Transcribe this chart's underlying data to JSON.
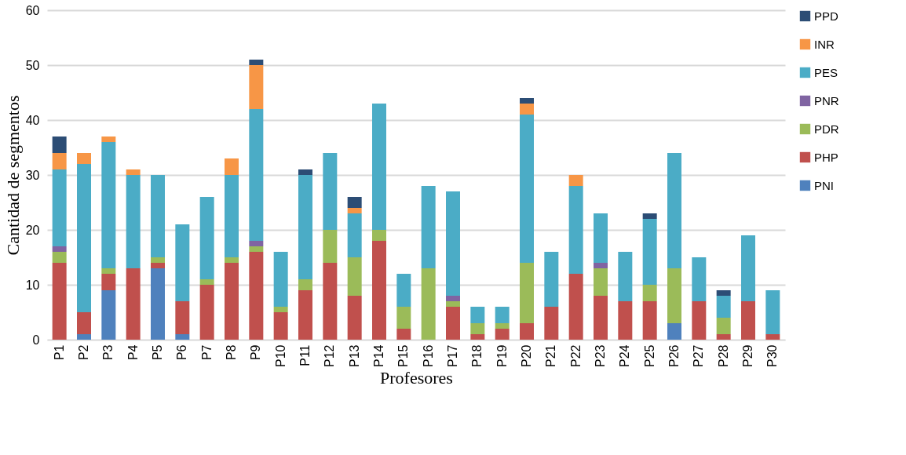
{
  "chart_data": {
    "type": "bar",
    "stacked": true,
    "xlabel": "Profesores",
    "ylabel": "Cantidad de segmentos",
    "categories": [
      "P1",
      "P2",
      "P3",
      "P4",
      "P5",
      "P6",
      "P7",
      "P8",
      "P9",
      "P10",
      "P11",
      "P12",
      "P13",
      "P14",
      "P15",
      "P16",
      "P17",
      "P18",
      "P19",
      "P20",
      "P21",
      "P22",
      "P23",
      "P24",
      "P25",
      "P26",
      "P27",
      "P28",
      "P29",
      "P30"
    ],
    "ylim": [
      0,
      60
    ],
    "yticks": [
      0,
      10,
      20,
      30,
      40,
      50,
      60
    ],
    "grid": "y",
    "legend": "right",
    "series": [
      {
        "name": "PNI",
        "color": "#4f81bd",
        "values": [
          0,
          1,
          9,
          0,
          13,
          1,
          0,
          0,
          0,
          0,
          0,
          0,
          0,
          0,
          0,
          0,
          0,
          0,
          0,
          0,
          0,
          0,
          0,
          0,
          0,
          3,
          0,
          0,
          0,
          0
        ]
      },
      {
        "name": "PHP",
        "color": "#c0504d",
        "values": [
          14,
          4,
          3,
          13,
          1,
          6,
          10,
          14,
          16,
          5,
          9,
          14,
          8,
          18,
          2,
          0,
          6,
          1,
          2,
          3,
          6,
          12,
          8,
          7,
          7,
          0,
          7,
          1,
          7,
          1
        ]
      },
      {
        "name": "PDR",
        "color": "#9bbb59",
        "values": [
          2,
          0,
          1,
          0,
          1,
          0,
          1,
          1,
          1,
          1,
          2,
          6,
          7,
          2,
          4,
          13,
          1,
          2,
          1,
          11,
          0,
          0,
          5,
          0,
          3,
          10,
          0,
          3,
          0,
          0
        ]
      },
      {
        "name": "PNR",
        "color": "#8064a2",
        "values": [
          1,
          0,
          0,
          0,
          0,
          0,
          0,
          0,
          1,
          0,
          0,
          0,
          0,
          0,
          0,
          0,
          1,
          0,
          0,
          0,
          0,
          0,
          1,
          0,
          0,
          0,
          0,
          0,
          0,
          0
        ]
      },
      {
        "name": "PES",
        "color": "#4bacc6",
        "values": [
          14,
          27,
          23,
          17,
          15,
          14,
          15,
          15,
          24,
          10,
          19,
          14,
          8,
          23,
          6,
          15,
          19,
          3,
          3,
          27,
          10,
          16,
          9,
          9,
          12,
          21,
          8,
          4,
          12,
          8
        ]
      },
      {
        "name": "INR",
        "color": "#f79646",
        "values": [
          3,
          2,
          1,
          1,
          0,
          0,
          0,
          3,
          8,
          0,
          0,
          0,
          1,
          0,
          0,
          0,
          0,
          0,
          0,
          2,
          0,
          2,
          0,
          0,
          0,
          0,
          0,
          0,
          0,
          0
        ]
      },
      {
        "name": "PPD",
        "color": "#2c4d75",
        "values": [
          3,
          0,
          0,
          0,
          0,
          0,
          0,
          0,
          1,
          0,
          1,
          0,
          2,
          0,
          0,
          0,
          0,
          0,
          0,
          1,
          0,
          0,
          0,
          0,
          1,
          0,
          0,
          1,
          0,
          0
        ]
      }
    ]
  }
}
